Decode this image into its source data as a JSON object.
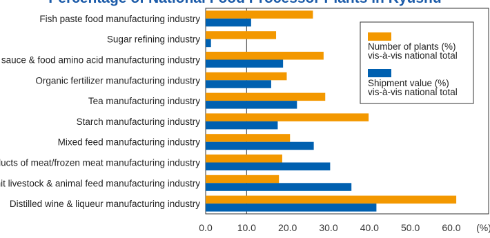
{
  "chart_data": {
    "type": "bar",
    "orientation": "horizontal",
    "title": "Percentage of National Food Processor Plants in Kyushu",
    "categories": [
      "Fish paste food manufacturing industry",
      "Sugar refining industry",
      "Soy sauce & food amino acid manufacturing industry",
      "Organic fertilizer manufacturing industry",
      "Tea manufacturing industry",
      "Starch manufacturing industry",
      "Mixed feed manufacturing industry",
      "Processed products of meat/frozen meat manufacturing industry",
      "Single-unit livestock & animal feed manufacturing industry",
      "Distilled wine & liqueur manufacturing industry"
    ],
    "series": [
      {
        "name": "Number of plants (%) vis-à-vis national total",
        "name_lines": [
          "Number of plants (%)",
          "vis-à-vis national total"
        ],
        "color": "#f39800",
        "values": [
          26.2,
          17.2,
          28.8,
          19.8,
          29.2,
          39.8,
          20.6,
          18.7,
          17.9,
          61.2
        ]
      },
      {
        "name": "Shipment value (%) vis-à-vis national total",
        "name_lines": [
          "Shipment value (%)",
          "vis-à-vis national total"
        ],
        "color": "#0060b0",
        "values": [
          11.1,
          1.3,
          18.9,
          16.0,
          22.3,
          17.6,
          26.4,
          30.4,
          35.6,
          41.7
        ]
      }
    ],
    "xlim": [
      0,
      70
    ],
    "xticks": [
      "0.0",
      "10.0",
      "20.0",
      "30.0",
      "40.0",
      "50.0",
      "60.0"
    ],
    "xunit": "(%)",
    "legend_position": "top-right",
    "reference_line": 10
  }
}
